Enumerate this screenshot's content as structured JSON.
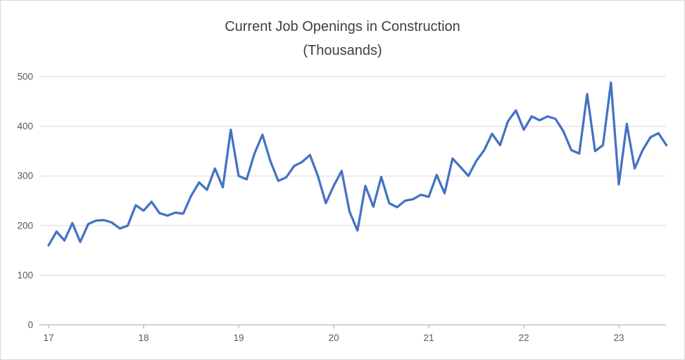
{
  "title": {
    "line1": "Current Job Openings in Construction",
    "line2": "(Thousands)"
  },
  "colors": {
    "series": "#4472C4",
    "gridline": "#d9d9d9",
    "axis": "#a6a6a6",
    "tick_text": "#595959",
    "title_text": "#404040",
    "background": "#ffffff",
    "border": "#d9d9d9"
  },
  "chart_data": {
    "type": "line",
    "title": "Current Job Openings in Construction (Thousands)",
    "xlabel": "",
    "ylabel": "",
    "legend": "none",
    "grid": true,
    "ylim": [
      0,
      500
    ],
    "y_ticks": [
      0,
      100,
      200,
      300,
      400,
      500
    ],
    "x_tick_labels": [
      "17",
      "18",
      "19",
      "20",
      "21",
      "22",
      "23"
    ],
    "months_per_tick": 12,
    "x_unit": "monthly, starting January 2017",
    "values": [
      160,
      188,
      170,
      205,
      167,
      203,
      210,
      211,
      206,
      194,
      200,
      241,
      230,
      248,
      225,
      220,
      226,
      224,
      260,
      287,
      272,
      315,
      277,
      393,
      300,
      293,
      345,
      383,
      330,
      290,
      297,
      320,
      328,
      342,
      300,
      245,
      280,
      310,
      228,
      190,
      280,
      238,
      298,
      245,
      237,
      250,
      253,
      262,
      258,
      302,
      265,
      335,
      318,
      300,
      330,
      352,
      385,
      362,
      410,
      432,
      393,
      420,
      412,
      420,
      415,
      390,
      352,
      345,
      465,
      350,
      362,
      488,
      283,
      405,
      315,
      352,
      378,
      386,
      362
    ]
  }
}
